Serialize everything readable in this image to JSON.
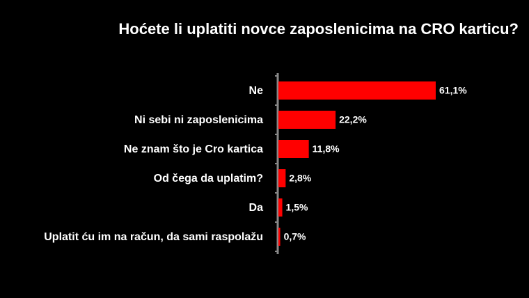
{
  "chart_data": {
    "type": "bar",
    "orientation": "horizontal",
    "title": "Hoćete li uplatiti novce zaposlenicima na CRO karticu?",
    "categories": [
      "Ne",
      "Ni sebi ni zaposlenicima",
      "Ne znam što je Cro kartica",
      "Od čega da uplatim?",
      "Da",
      "Uplatit ću im na račun, da sami raspolažu"
    ],
    "values": [
      61.1,
      22.2,
      11.8,
      2.8,
      1.5,
      0.7
    ],
    "value_labels": [
      "61,1%",
      "22,2%",
      "11,8%",
      "2,8%",
      "1,5%",
      "0,7%"
    ],
    "color": "#ff0000"
  }
}
